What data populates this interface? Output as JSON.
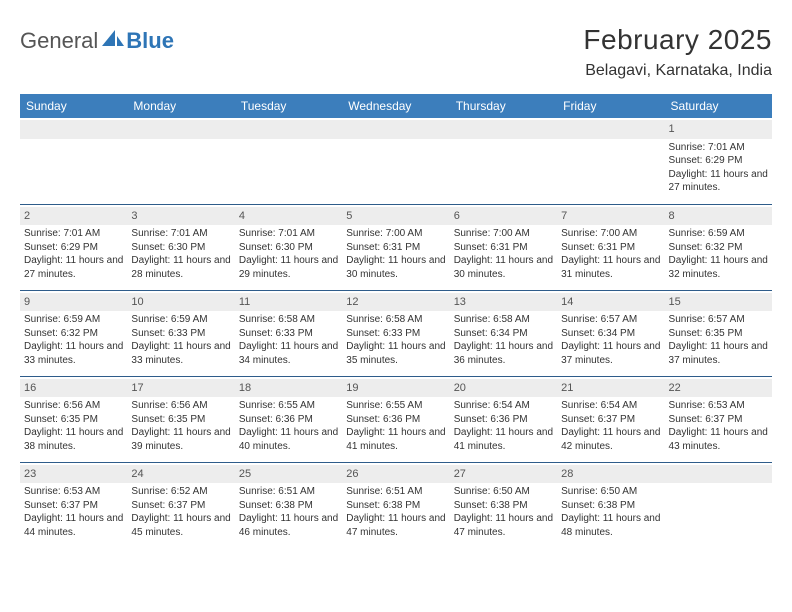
{
  "logo": {
    "a": "General",
    "b": "Blue"
  },
  "title": "February 2025",
  "location": "Belagavi, Karnataka, India",
  "colors": {
    "header_bg": "#3c7ebc",
    "header_text": "#ffffff",
    "row_divider": "#2e5c8a",
    "daynum_bg": "#ededed",
    "logo_blue": "#2e75b6",
    "logo_grey": "#555555"
  },
  "weekdays": [
    "Sunday",
    "Monday",
    "Tuesday",
    "Wednesday",
    "Thursday",
    "Friday",
    "Saturday"
  ],
  "weeks": [
    [
      {
        "n": "",
        "sunrise": "",
        "sunset": "",
        "daylight": ""
      },
      {
        "n": "",
        "sunrise": "",
        "sunset": "",
        "daylight": ""
      },
      {
        "n": "",
        "sunrise": "",
        "sunset": "",
        "daylight": ""
      },
      {
        "n": "",
        "sunrise": "",
        "sunset": "",
        "daylight": ""
      },
      {
        "n": "",
        "sunrise": "",
        "sunset": "",
        "daylight": ""
      },
      {
        "n": "",
        "sunrise": "",
        "sunset": "",
        "daylight": ""
      },
      {
        "n": "1",
        "sunrise": "Sunrise: 7:01 AM",
        "sunset": "Sunset: 6:29 PM",
        "daylight": "Daylight: 11 hours and 27 minutes."
      }
    ],
    [
      {
        "n": "2",
        "sunrise": "Sunrise: 7:01 AM",
        "sunset": "Sunset: 6:29 PM",
        "daylight": "Daylight: 11 hours and 27 minutes."
      },
      {
        "n": "3",
        "sunrise": "Sunrise: 7:01 AM",
        "sunset": "Sunset: 6:30 PM",
        "daylight": "Daylight: 11 hours and 28 minutes."
      },
      {
        "n": "4",
        "sunrise": "Sunrise: 7:01 AM",
        "sunset": "Sunset: 6:30 PM",
        "daylight": "Daylight: 11 hours and 29 minutes."
      },
      {
        "n": "5",
        "sunrise": "Sunrise: 7:00 AM",
        "sunset": "Sunset: 6:31 PM",
        "daylight": "Daylight: 11 hours and 30 minutes."
      },
      {
        "n": "6",
        "sunrise": "Sunrise: 7:00 AM",
        "sunset": "Sunset: 6:31 PM",
        "daylight": "Daylight: 11 hours and 30 minutes."
      },
      {
        "n": "7",
        "sunrise": "Sunrise: 7:00 AM",
        "sunset": "Sunset: 6:31 PM",
        "daylight": "Daylight: 11 hours and 31 minutes."
      },
      {
        "n": "8",
        "sunrise": "Sunrise: 6:59 AM",
        "sunset": "Sunset: 6:32 PM",
        "daylight": "Daylight: 11 hours and 32 minutes."
      }
    ],
    [
      {
        "n": "9",
        "sunrise": "Sunrise: 6:59 AM",
        "sunset": "Sunset: 6:32 PM",
        "daylight": "Daylight: 11 hours and 33 minutes."
      },
      {
        "n": "10",
        "sunrise": "Sunrise: 6:59 AM",
        "sunset": "Sunset: 6:33 PM",
        "daylight": "Daylight: 11 hours and 33 minutes."
      },
      {
        "n": "11",
        "sunrise": "Sunrise: 6:58 AM",
        "sunset": "Sunset: 6:33 PM",
        "daylight": "Daylight: 11 hours and 34 minutes."
      },
      {
        "n": "12",
        "sunrise": "Sunrise: 6:58 AM",
        "sunset": "Sunset: 6:33 PM",
        "daylight": "Daylight: 11 hours and 35 minutes."
      },
      {
        "n": "13",
        "sunrise": "Sunrise: 6:58 AM",
        "sunset": "Sunset: 6:34 PM",
        "daylight": "Daylight: 11 hours and 36 minutes."
      },
      {
        "n": "14",
        "sunrise": "Sunrise: 6:57 AM",
        "sunset": "Sunset: 6:34 PM",
        "daylight": "Daylight: 11 hours and 37 minutes."
      },
      {
        "n": "15",
        "sunrise": "Sunrise: 6:57 AM",
        "sunset": "Sunset: 6:35 PM",
        "daylight": "Daylight: 11 hours and 37 minutes."
      }
    ],
    [
      {
        "n": "16",
        "sunrise": "Sunrise: 6:56 AM",
        "sunset": "Sunset: 6:35 PM",
        "daylight": "Daylight: 11 hours and 38 minutes."
      },
      {
        "n": "17",
        "sunrise": "Sunrise: 6:56 AM",
        "sunset": "Sunset: 6:35 PM",
        "daylight": "Daylight: 11 hours and 39 minutes."
      },
      {
        "n": "18",
        "sunrise": "Sunrise: 6:55 AM",
        "sunset": "Sunset: 6:36 PM",
        "daylight": "Daylight: 11 hours and 40 minutes."
      },
      {
        "n": "19",
        "sunrise": "Sunrise: 6:55 AM",
        "sunset": "Sunset: 6:36 PM",
        "daylight": "Daylight: 11 hours and 41 minutes."
      },
      {
        "n": "20",
        "sunrise": "Sunrise: 6:54 AM",
        "sunset": "Sunset: 6:36 PM",
        "daylight": "Daylight: 11 hours and 41 minutes."
      },
      {
        "n": "21",
        "sunrise": "Sunrise: 6:54 AM",
        "sunset": "Sunset: 6:37 PM",
        "daylight": "Daylight: 11 hours and 42 minutes."
      },
      {
        "n": "22",
        "sunrise": "Sunrise: 6:53 AM",
        "sunset": "Sunset: 6:37 PM",
        "daylight": "Daylight: 11 hours and 43 minutes."
      }
    ],
    [
      {
        "n": "23",
        "sunrise": "Sunrise: 6:53 AM",
        "sunset": "Sunset: 6:37 PM",
        "daylight": "Daylight: 11 hours and 44 minutes."
      },
      {
        "n": "24",
        "sunrise": "Sunrise: 6:52 AM",
        "sunset": "Sunset: 6:37 PM",
        "daylight": "Daylight: 11 hours and 45 minutes."
      },
      {
        "n": "25",
        "sunrise": "Sunrise: 6:51 AM",
        "sunset": "Sunset: 6:38 PM",
        "daylight": "Daylight: 11 hours and 46 minutes."
      },
      {
        "n": "26",
        "sunrise": "Sunrise: 6:51 AM",
        "sunset": "Sunset: 6:38 PM",
        "daylight": "Daylight: 11 hours and 47 minutes."
      },
      {
        "n": "27",
        "sunrise": "Sunrise: 6:50 AM",
        "sunset": "Sunset: 6:38 PM",
        "daylight": "Daylight: 11 hours and 47 minutes."
      },
      {
        "n": "28",
        "sunrise": "Sunrise: 6:50 AM",
        "sunset": "Sunset: 6:38 PM",
        "daylight": "Daylight: 11 hours and 48 minutes."
      },
      {
        "n": "",
        "sunrise": "",
        "sunset": "",
        "daylight": ""
      }
    ]
  ]
}
